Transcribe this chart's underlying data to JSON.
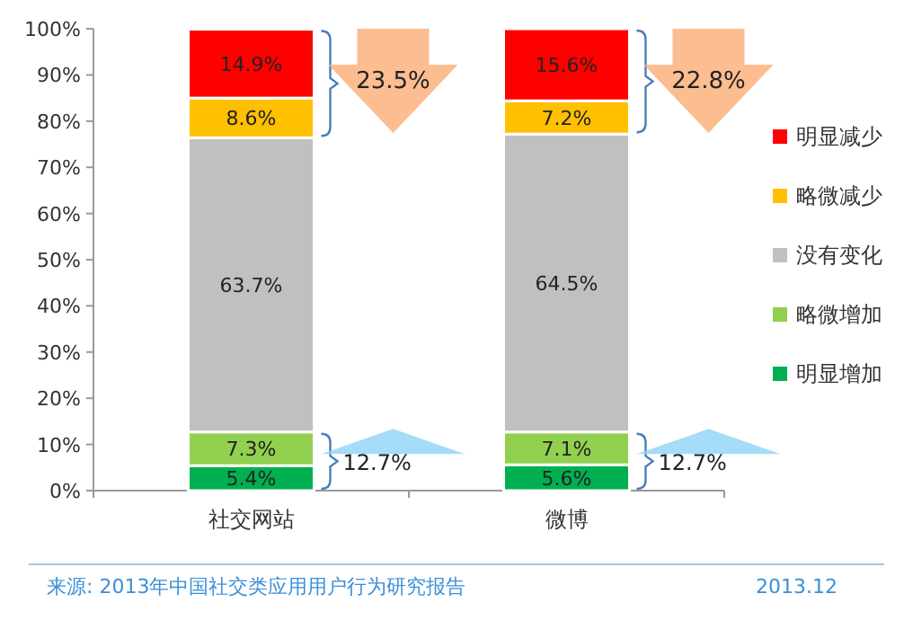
{
  "chart_data": {
    "type": "bar",
    "stacked": true,
    "categories": [
      "社交网站",
      "微博"
    ],
    "series": [
      {
        "name": "明显增加",
        "color": "#00b050",
        "values": [
          5.4,
          5.6
        ],
        "value_labels": [
          "5.4%",
          "5.6%"
        ]
      },
      {
        "name": "略微增加",
        "color": "#92d050",
        "values": [
          7.3,
          7.1
        ],
        "value_labels": [
          "7.3%",
          "7.1%"
        ]
      },
      {
        "name": "没有变化",
        "color": "#c0c0c0",
        "values": [
          63.7,
          64.5
        ],
        "value_labels": [
          "63.7%",
          "64.5%"
        ]
      },
      {
        "name": "略微减少",
        "color": "#ffc000",
        "values": [
          8.6,
          7.2
        ],
        "value_labels": [
          "8.6%",
          "7.2%"
        ]
      },
      {
        "name": "明显减少",
        "color": "#ff0000",
        "values": [
          14.9,
          15.6
        ],
        "value_labels": [
          "14.9%",
          "15.6%"
        ]
      }
    ],
    "ylim": [
      0,
      100
    ],
    "yticks": [
      {
        "value": 0,
        "label": "0%"
      },
      {
        "value": 10,
        "label": "10%"
      },
      {
        "value": 20,
        "label": "20%"
      },
      {
        "value": 30,
        "label": "30%"
      },
      {
        "value": 40,
        "label": "40%"
      },
      {
        "value": 50,
        "label": "50%"
      },
      {
        "value": 60,
        "label": "60%"
      },
      {
        "value": 70,
        "label": "70%"
      },
      {
        "value": 80,
        "label": "80%"
      },
      {
        "value": 90,
        "label": "90%"
      },
      {
        "value": 100,
        "label": "100%"
      }
    ],
    "legend": "right",
    "grid": false,
    "annotations": [
      "23.5%",
      "12.7%",
      "22.8%",
      "12.7%",
      "来源: 2013年中国社交类应用用户行为研究报告",
      "2013.12"
    ]
  }
}
